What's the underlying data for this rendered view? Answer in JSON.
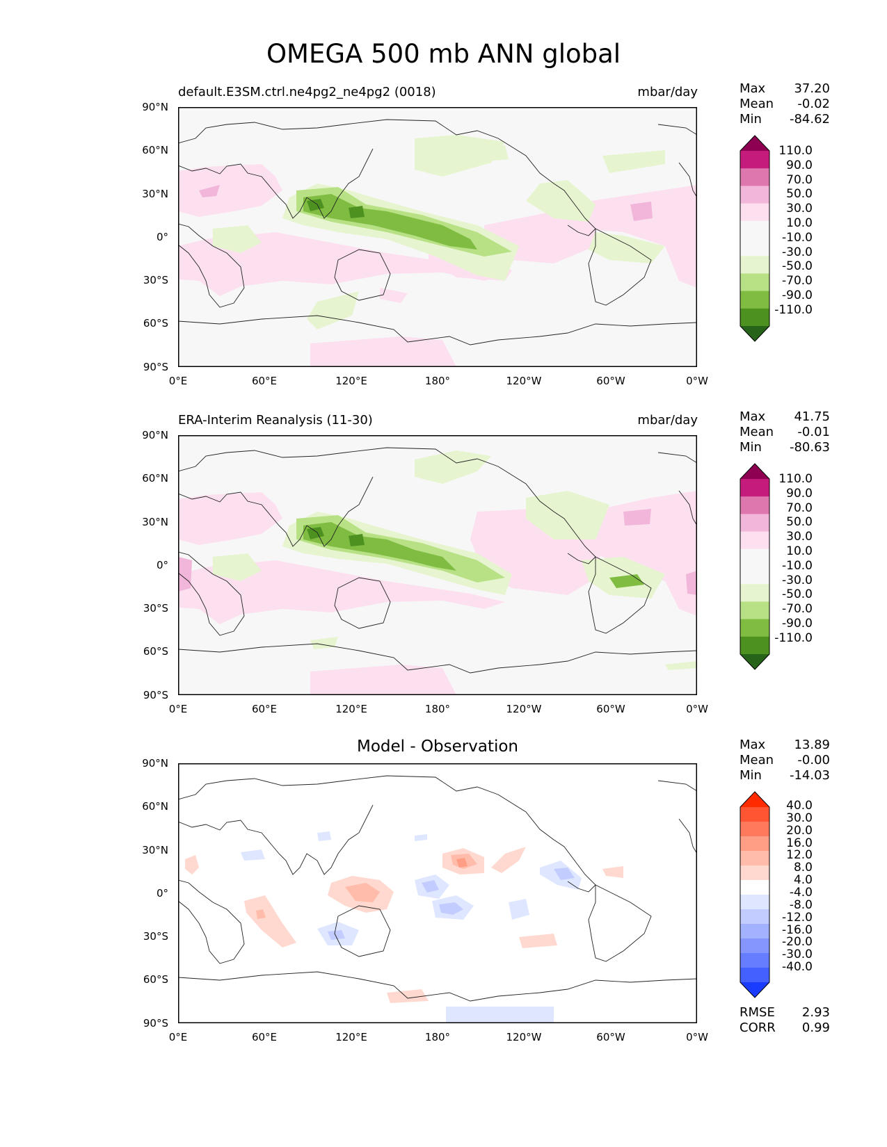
{
  "title": "OMEGA 500 mb ANN global",
  "axes": {
    "lat_ticks": [
      "90°N",
      "60°N",
      "30°N",
      "0°",
      "30°S",
      "60°S",
      "90°S"
    ],
    "lon_ticks": [
      "0°E",
      "60°E",
      "120°E",
      "180°",
      "120°W",
      "60°W",
      "0°W"
    ]
  },
  "panels": [
    {
      "title_left": "default.E3SM.ctrl.ne4pg2_ne4pg2 (0018)",
      "title_right": "mbar/day",
      "stats": [
        {
          "label": "Max",
          "value": "37.20"
        },
        {
          "label": "Mean",
          "value": "-0.02"
        },
        {
          "label": "Min",
          "value": "-84.62"
        }
      ]
    },
    {
      "title_left": "ERA-Interim Reanalysis (11-30)",
      "title_right": "mbar/day",
      "stats": [
        {
          "label": "Max",
          "value": "41.75"
        },
        {
          "label": "Mean",
          "value": "-0.01"
        },
        {
          "label": "Min",
          "value": "-80.63"
        }
      ]
    },
    {
      "title_center": "Model - Observation",
      "stats": [
        {
          "label": "Max",
          "value": "13.89"
        },
        {
          "label": "Mean",
          "value": "-0.00"
        },
        {
          "label": "Min",
          "value": "-14.03"
        }
      ],
      "extra_stats": [
        {
          "label": "RMSE",
          "value": "2.93"
        },
        {
          "label": "CORR",
          "value": "0.99"
        }
      ]
    }
  ],
  "colorbars": {
    "field": {
      "labels": [
        "110.0",
        "90.0",
        "70.0",
        "50.0",
        "30.0",
        "10.0",
        "-10.0",
        "-30.0",
        "-50.0",
        "-70.0",
        "-90.0",
        "-110.0"
      ],
      "colors": [
        "#8e0152",
        "#c51b7d",
        "#de77ae",
        "#f1b6da",
        "#fde0ef",
        "#f7f7f7",
        "#f7f7f7",
        "#e6f5d0",
        "#b8e186",
        "#7fbc41",
        "#4d9221",
        "#276419"
      ]
    },
    "diff": {
      "labels": [
        "40.0",
        "30.0",
        "20.0",
        "16.0",
        "12.0",
        "8.0",
        "4.0",
        "-4.0",
        "-8.0",
        "-12.0",
        "-16.0",
        "-20.0",
        "-30.0",
        "-40.0"
      ],
      "colors": [
        "#ff2a00",
        "#ff5533",
        "#ff7a5c",
        "#ff9d85",
        "#ffbcaa",
        "#ffd9cf",
        "#ffffff",
        "#dfe6ff",
        "#c2ccff",
        "#a3b2ff",
        "#8597ff",
        "#667dff",
        "#4460ff",
        "#1a3cff"
      ]
    }
  },
  "chart_data": [
    {
      "type": "heatmap",
      "title": "default.E3SM.ctrl.ne4pg2_ne4pg2 (0018)",
      "units": "mbar/day",
      "xlim": [
        0,
        360
      ],
      "ylim": [
        -90,
        90
      ],
      "levels": [
        -110,
        -90,
        -70,
        -50,
        -30,
        -10,
        10,
        30,
        50,
        70,
        90,
        110
      ],
      "max": 37.2,
      "mean": -0.02,
      "min": -84.62
    },
    {
      "type": "heatmap",
      "title": "ERA-Interim Reanalysis (11-30)",
      "units": "mbar/day",
      "xlim": [
        0,
        360
      ],
      "ylim": [
        -90,
        90
      ],
      "levels": [
        -110,
        -90,
        -70,
        -50,
        -30,
        -10,
        10,
        30,
        50,
        70,
        90,
        110
      ],
      "max": 41.75,
      "mean": -0.01,
      "min": -80.63
    },
    {
      "type": "heatmap",
      "title": "Model - Observation",
      "xlim": [
        0,
        360
      ],
      "ylim": [
        -90,
        90
      ],
      "levels": [
        -40,
        -30,
        -20,
        -16,
        -12,
        -8,
        -4,
        4,
        8,
        12,
        16,
        20,
        30,
        40
      ],
      "max": 13.89,
      "mean": -0.0,
      "min": -14.03,
      "rmse": 2.93,
      "corr": 0.99
    }
  ]
}
